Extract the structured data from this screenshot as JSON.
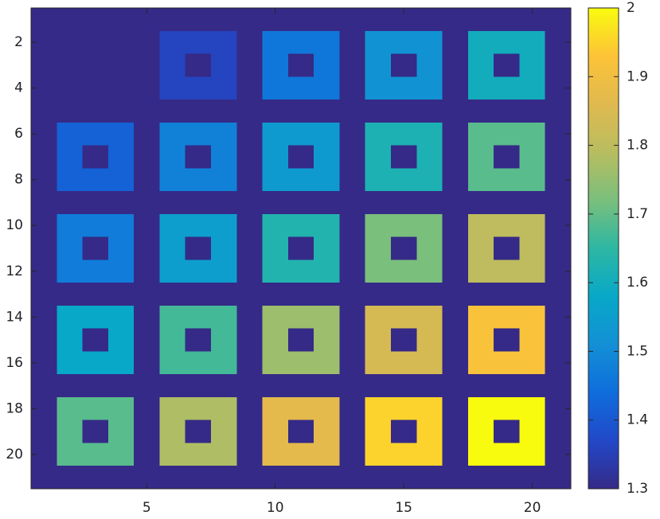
{
  "chart_data": {
    "type": "heatmap",
    "xlim": [
      0.5,
      21.5
    ],
    "ylim": [
      0.5,
      21.5
    ],
    "y_reversed": true,
    "xticks": [
      5,
      10,
      15,
      20
    ],
    "yticks": [
      2,
      4,
      6,
      8,
      10,
      12,
      14,
      16,
      18,
      20
    ],
    "clim": [
      1.3,
      2
    ],
    "cticks": [
      1.3,
      1.4,
      1.5,
      1.6,
      1.7,
      1.8,
      1.9,
      2
    ],
    "colormap": [
      "#352a87",
      "#2248c8",
      "#0f6ddc",
      "#1390d5",
      "#08a8c8",
      "#2db7a3",
      "#7abf7c",
      "#b8bd60",
      "#e0b94f",
      "#fdc338",
      "#f9fb0e"
    ],
    "z": [
      [
        1.3,
        1.3,
        1.3,
        1.3,
        1.3,
        1.3,
        1.3,
        1.3,
        1.3,
        1.3,
        1.3,
        1.3,
        1.3,
        1.3,
        1.3,
        1.3,
        1.3,
        1.3,
        1.3,
        1.3,
        1.3
      ],
      [
        1.3,
        1.3,
        1.3,
        1.3,
        1.3,
        1.36,
        1.36,
        1.36,
        1.3,
        1.46,
        1.46,
        1.46,
        1.3,
        1.52,
        1.52,
        1.52,
        1.3,
        1.6,
        1.6,
        1.6,
        1.3
      ],
      [
        1.3,
        1.3,
        1.3,
        1.3,
        1.3,
        1.36,
        1.3,
        1.36,
        1.3,
        1.46,
        1.3,
        1.46,
        1.3,
        1.52,
        1.3,
        1.52,
        1.3,
        1.6,
        1.3,
        1.6,
        1.3
      ],
      [
        1.3,
        1.3,
        1.3,
        1.3,
        1.3,
        1.36,
        1.36,
        1.36,
        1.3,
        1.46,
        1.46,
        1.46,
        1.3,
        1.52,
        1.52,
        1.52,
        1.3,
        1.6,
        1.6,
        1.6,
        1.3
      ],
      [
        1.3,
        1.3,
        1.3,
        1.3,
        1.3,
        1.3,
        1.3,
        1.3,
        1.3,
        1.3,
        1.3,
        1.3,
        1.3,
        1.3,
        1.3,
        1.3,
        1.3,
        1.3,
        1.3,
        1.3,
        1.3
      ],
      [
        1.3,
        1.42,
        1.42,
        1.42,
        1.3,
        1.48,
        1.48,
        1.48,
        1.3,
        1.54,
        1.54,
        1.54,
        1.3,
        1.62,
        1.62,
        1.62,
        1.3,
        1.69,
        1.69,
        1.69,
        1.3
      ],
      [
        1.3,
        1.42,
        1.3,
        1.42,
        1.3,
        1.48,
        1.3,
        1.48,
        1.3,
        1.54,
        1.3,
        1.54,
        1.3,
        1.62,
        1.3,
        1.62,
        1.3,
        1.69,
        1.3,
        1.69,
        1.3
      ],
      [
        1.3,
        1.42,
        1.42,
        1.42,
        1.3,
        1.48,
        1.48,
        1.48,
        1.3,
        1.54,
        1.54,
        1.54,
        1.3,
        1.62,
        1.62,
        1.62,
        1.3,
        1.69,
        1.69,
        1.69,
        1.3
      ],
      [
        1.3,
        1.3,
        1.3,
        1.3,
        1.3,
        1.3,
        1.3,
        1.3,
        1.3,
        1.3,
        1.3,
        1.3,
        1.3,
        1.3,
        1.3,
        1.3,
        1.3,
        1.3,
        1.3,
        1.3,
        1.3
      ],
      [
        1.3,
        1.47,
        1.47,
        1.47,
        1.3,
        1.55,
        1.55,
        1.55,
        1.3,
        1.63,
        1.63,
        1.63,
        1.3,
        1.72,
        1.72,
        1.72,
        1.3,
        1.8,
        1.8,
        1.8,
        1.3
      ],
      [
        1.3,
        1.47,
        1.3,
        1.47,
        1.3,
        1.55,
        1.3,
        1.55,
        1.3,
        1.63,
        1.3,
        1.63,
        1.3,
        1.72,
        1.3,
        1.72,
        1.3,
        1.8,
        1.3,
        1.8,
        1.3
      ],
      [
        1.3,
        1.47,
        1.47,
        1.47,
        1.3,
        1.55,
        1.55,
        1.55,
        1.3,
        1.63,
        1.63,
        1.63,
        1.3,
        1.72,
        1.72,
        1.72,
        1.3,
        1.8,
        1.8,
        1.8,
        1.3
      ],
      [
        1.3,
        1.3,
        1.3,
        1.3,
        1.3,
        1.3,
        1.3,
        1.3,
        1.3,
        1.3,
        1.3,
        1.3,
        1.3,
        1.3,
        1.3,
        1.3,
        1.3,
        1.3,
        1.3,
        1.3,
        1.3
      ],
      [
        1.3,
        1.58,
        1.58,
        1.58,
        1.3,
        1.67,
        1.67,
        1.67,
        1.3,
        1.76,
        1.76,
        1.76,
        1.3,
        1.84,
        1.84,
        1.84,
        1.3,
        1.92,
        1.92,
        1.92,
        1.3
      ],
      [
        1.3,
        1.58,
        1.3,
        1.58,
        1.3,
        1.67,
        1.3,
        1.67,
        1.3,
        1.76,
        1.3,
        1.76,
        1.3,
        1.84,
        1.3,
        1.84,
        1.3,
        1.92,
        1.3,
        1.92,
        1.3
      ],
      [
        1.3,
        1.58,
        1.58,
        1.58,
        1.3,
        1.67,
        1.67,
        1.67,
        1.3,
        1.76,
        1.76,
        1.76,
        1.3,
        1.84,
        1.84,
        1.84,
        1.3,
        1.92,
        1.92,
        1.92,
        1.3
      ],
      [
        1.3,
        1.3,
        1.3,
        1.3,
        1.3,
        1.3,
        1.3,
        1.3,
        1.3,
        1.3,
        1.3,
        1.3,
        1.3,
        1.3,
        1.3,
        1.3,
        1.3,
        1.3,
        1.3,
        1.3,
        1.3
      ],
      [
        1.3,
        1.69,
        1.69,
        1.69,
        1.3,
        1.78,
        1.78,
        1.78,
        1.3,
        1.87,
        1.87,
        1.87,
        1.3,
        1.95,
        1.95,
        1.95,
        1.3,
        2,
        2,
        2,
        1.3
      ],
      [
        1.3,
        1.69,
        1.3,
        1.69,
        1.3,
        1.78,
        1.3,
        1.78,
        1.3,
        1.87,
        1.3,
        1.87,
        1.3,
        1.95,
        1.3,
        1.95,
        1.3,
        2,
        1.3,
        2,
        1.3
      ],
      [
        1.3,
        1.69,
        1.69,
        1.69,
        1.3,
        1.78,
        1.78,
        1.78,
        1.3,
        1.87,
        1.87,
        1.87,
        1.3,
        1.95,
        1.95,
        1.95,
        1.3,
        2,
        2,
        2,
        1.3
      ],
      [
        1.3,
        1.3,
        1.3,
        1.3,
        1.3,
        1.3,
        1.3,
        1.3,
        1.3,
        1.3,
        1.3,
        1.3,
        1.3,
        1.3,
        1.3,
        1.3,
        1.3,
        1.3,
        1.3,
        1.3,
        1.3
      ]
    ]
  }
}
